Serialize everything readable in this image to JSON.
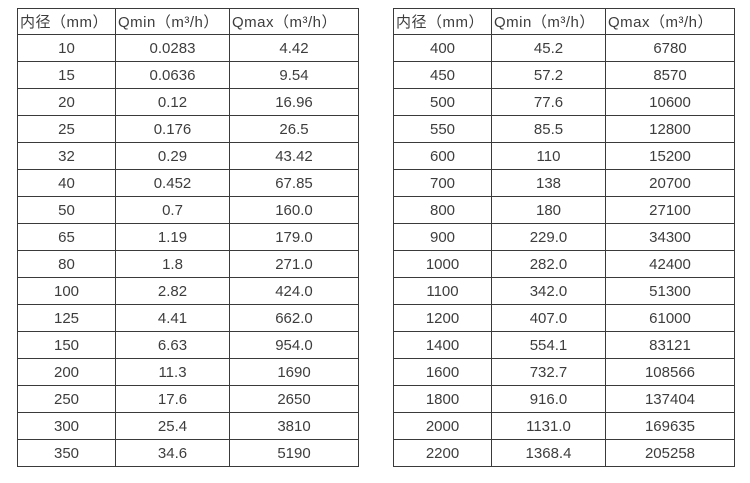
{
  "page": {
    "background_color": "#ffffff",
    "text_color": "#3d3d3d",
    "border_color": "#3a3a3a"
  },
  "tables": [
    {
      "name": "flow-table-small-diameters",
      "headers": [
        "内径（mm）",
        "Qmin（m³/h）",
        "Qmax（m³/h）"
      ],
      "rows": [
        [
          "10",
          "0.0283",
          "4.42"
        ],
        [
          "15",
          "0.0636",
          "9.54"
        ],
        [
          "20",
          "0.12",
          "16.96"
        ],
        [
          "25",
          "0.176",
          "26.5"
        ],
        [
          "32",
          "0.29",
          "43.42"
        ],
        [
          "40",
          "0.452",
          "67.85"
        ],
        [
          "50",
          "0.7",
          "160.0"
        ],
        [
          "65",
          "1.19",
          "179.0"
        ],
        [
          "80",
          "1.8",
          "271.0"
        ],
        [
          "100",
          "2.82",
          "424.0"
        ],
        [
          "125",
          "4.41",
          "662.0"
        ],
        [
          "150",
          "6.63",
          "954.0"
        ],
        [
          "200",
          "11.3",
          "1690"
        ],
        [
          "250",
          "17.6",
          "2650"
        ],
        [
          "300",
          "25.4",
          "3810"
        ],
        [
          "350",
          "34.6",
          "5190"
        ]
      ]
    },
    {
      "name": "flow-table-large-diameters",
      "headers": [
        "内径（mm）",
        "Qmin（m³/h）",
        "Qmax（m³/h）"
      ],
      "rows": [
        [
          "400",
          "45.2",
          "6780"
        ],
        [
          "450",
          "57.2",
          "8570"
        ],
        [
          "500",
          "77.6",
          "10600"
        ],
        [
          "550",
          "85.5",
          "12800"
        ],
        [
          "600",
          "110",
          "15200"
        ],
        [
          "700",
          "138",
          "20700"
        ],
        [
          "800",
          "180",
          "27100"
        ],
        [
          "900",
          "229.0",
          "34300"
        ],
        [
          "1000",
          "282.0",
          "42400"
        ],
        [
          "1100",
          "342.0",
          "51300"
        ],
        [
          "1200",
          "407.0",
          "61000"
        ],
        [
          "1400",
          "554.1",
          "83121"
        ],
        [
          "1600",
          "732.7",
          "108566"
        ],
        [
          "1800",
          "916.0",
          "137404"
        ],
        [
          "2000",
          "1131.0",
          "169635"
        ],
        [
          "2200",
          "1368.4",
          "205258"
        ]
      ]
    }
  ]
}
